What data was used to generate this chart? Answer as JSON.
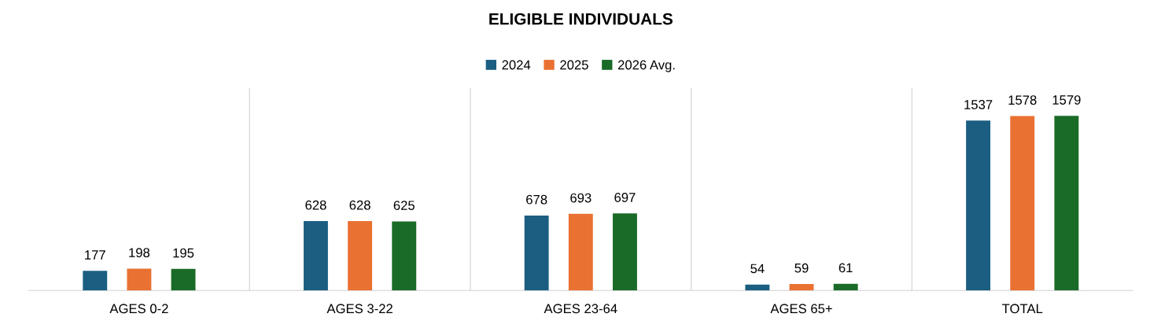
{
  "chart_data": {
    "type": "bar",
    "title": "ELIGIBLE INDIVIDUALS",
    "categories": [
      "AGES 0-2",
      "AGES 3-22",
      "AGES 23-64",
      "AGES 65+",
      "TOTAL"
    ],
    "series": [
      {
        "name": "2024",
        "color": "#1b5e82",
        "values": [
          177,
          628,
          678,
          54,
          1537
        ]
      },
      {
        "name": "2025",
        "color": "#e97132",
        "values": [
          198,
          628,
          693,
          59,
          1578
        ]
      },
      {
        "name": "2026 Avg.",
        "color": "#1a6b27",
        "values": [
          195,
          625,
          697,
          61,
          1579
        ]
      }
    ],
    "data_labels": true,
    "legend": "top",
    "grid": "x"
  }
}
